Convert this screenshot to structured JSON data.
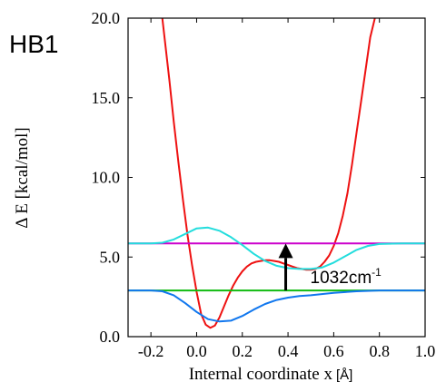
{
  "chart_data": {
    "type": "line",
    "panel_label": "HB1",
    "xlabel_main": "Internal coordinate x",
    "xlabel_unit": "[Å]",
    "ylabel": "Δ E [kcal/mol]",
    "xlim": [
      -0.3,
      1.0
    ],
    "ylim": [
      0.0,
      20.0
    ],
    "xticks": [
      -0.2,
      0.0,
      0.2,
      0.4,
      0.6,
      0.8,
      1.0
    ],
    "xtick_labels": [
      "-0.2",
      "0.0",
      "0.2",
      "0.4",
      "0.6",
      "0.8",
      "1.0"
    ],
    "yticks": [
      0.0,
      5.0,
      10.0,
      15.0,
      20.0
    ],
    "ytick_labels": [
      "0.0",
      "5.0",
      "10.0",
      "15.0",
      "20.0"
    ],
    "grid": false,
    "series": [
      {
        "color": "#ee1111",
        "x": [
          -0.15,
          -0.12,
          -0.1,
          -0.08,
          -0.06,
          -0.04,
          -0.02,
          0.0,
          0.02,
          0.04,
          0.06,
          0.08,
          0.1,
          0.12,
          0.14,
          0.16,
          0.18,
          0.2,
          0.22,
          0.24,
          0.26,
          0.28,
          0.3,
          0.32,
          0.34,
          0.36,
          0.38,
          0.4,
          0.42,
          0.44,
          0.46,
          0.48,
          0.5,
          0.52,
          0.54,
          0.56,
          0.58,
          0.6,
          0.62,
          0.64,
          0.66,
          0.68,
          0.7,
          0.72,
          0.74,
          0.76,
          0.78
        ],
        "y": [
          20.0,
          16.2,
          13.5,
          11.0,
          8.6,
          6.4,
          4.5,
          2.8,
          1.4,
          0.75,
          0.55,
          0.7,
          1.2,
          1.9,
          2.6,
          3.2,
          3.7,
          4.1,
          4.4,
          4.6,
          4.7,
          4.75,
          4.8,
          4.8,
          4.75,
          4.7,
          4.6,
          4.5,
          4.4,
          4.3,
          4.25,
          4.2,
          4.2,
          4.25,
          4.4,
          4.7,
          5.1,
          5.7,
          6.5,
          7.6,
          9.0,
          10.8,
          12.8,
          14.8,
          16.8,
          18.8,
          20.0
        ]
      },
      {
        "color": "#cc00cc",
        "x": [
          -0.3,
          1.0
        ],
        "y": [
          5.85,
          5.85
        ]
      },
      {
        "color": "#11bb11",
        "x": [
          -0.3,
          1.0
        ],
        "y": [
          2.9,
          2.9
        ]
      },
      {
        "color": "#22dddd",
        "x": [
          -0.3,
          -0.2,
          -0.15,
          -0.1,
          -0.05,
          0.0,
          0.05,
          0.1,
          0.15,
          0.2,
          0.25,
          0.3,
          0.35,
          0.4,
          0.45,
          0.5,
          0.55,
          0.6,
          0.65,
          0.7,
          0.75,
          0.8,
          0.9,
          1.0
        ],
        "y": [
          5.85,
          5.85,
          5.9,
          6.1,
          6.45,
          6.8,
          6.85,
          6.65,
          6.25,
          5.75,
          5.2,
          4.75,
          4.45,
          4.3,
          4.25,
          4.25,
          4.35,
          4.65,
          5.05,
          5.45,
          5.7,
          5.82,
          5.85,
          5.85
        ]
      },
      {
        "color": "#1177ee",
        "x": [
          -0.3,
          -0.2,
          -0.15,
          -0.1,
          -0.05,
          0.0,
          0.05,
          0.1,
          0.15,
          0.2,
          0.25,
          0.3,
          0.35,
          0.4,
          0.45,
          0.5,
          0.6,
          0.7,
          0.8,
          0.9,
          1.0
        ],
        "y": [
          2.9,
          2.9,
          2.85,
          2.6,
          2.1,
          1.55,
          1.1,
          0.95,
          1.0,
          1.3,
          1.7,
          2.05,
          2.3,
          2.45,
          2.55,
          2.6,
          2.75,
          2.85,
          2.9,
          2.9,
          2.9
        ]
      }
    ],
    "annotation": {
      "text": "1032cm",
      "superscript": "-1",
      "arrow_x": 0.39,
      "arrow_from": 2.9,
      "arrow_to": 5.85
    }
  }
}
